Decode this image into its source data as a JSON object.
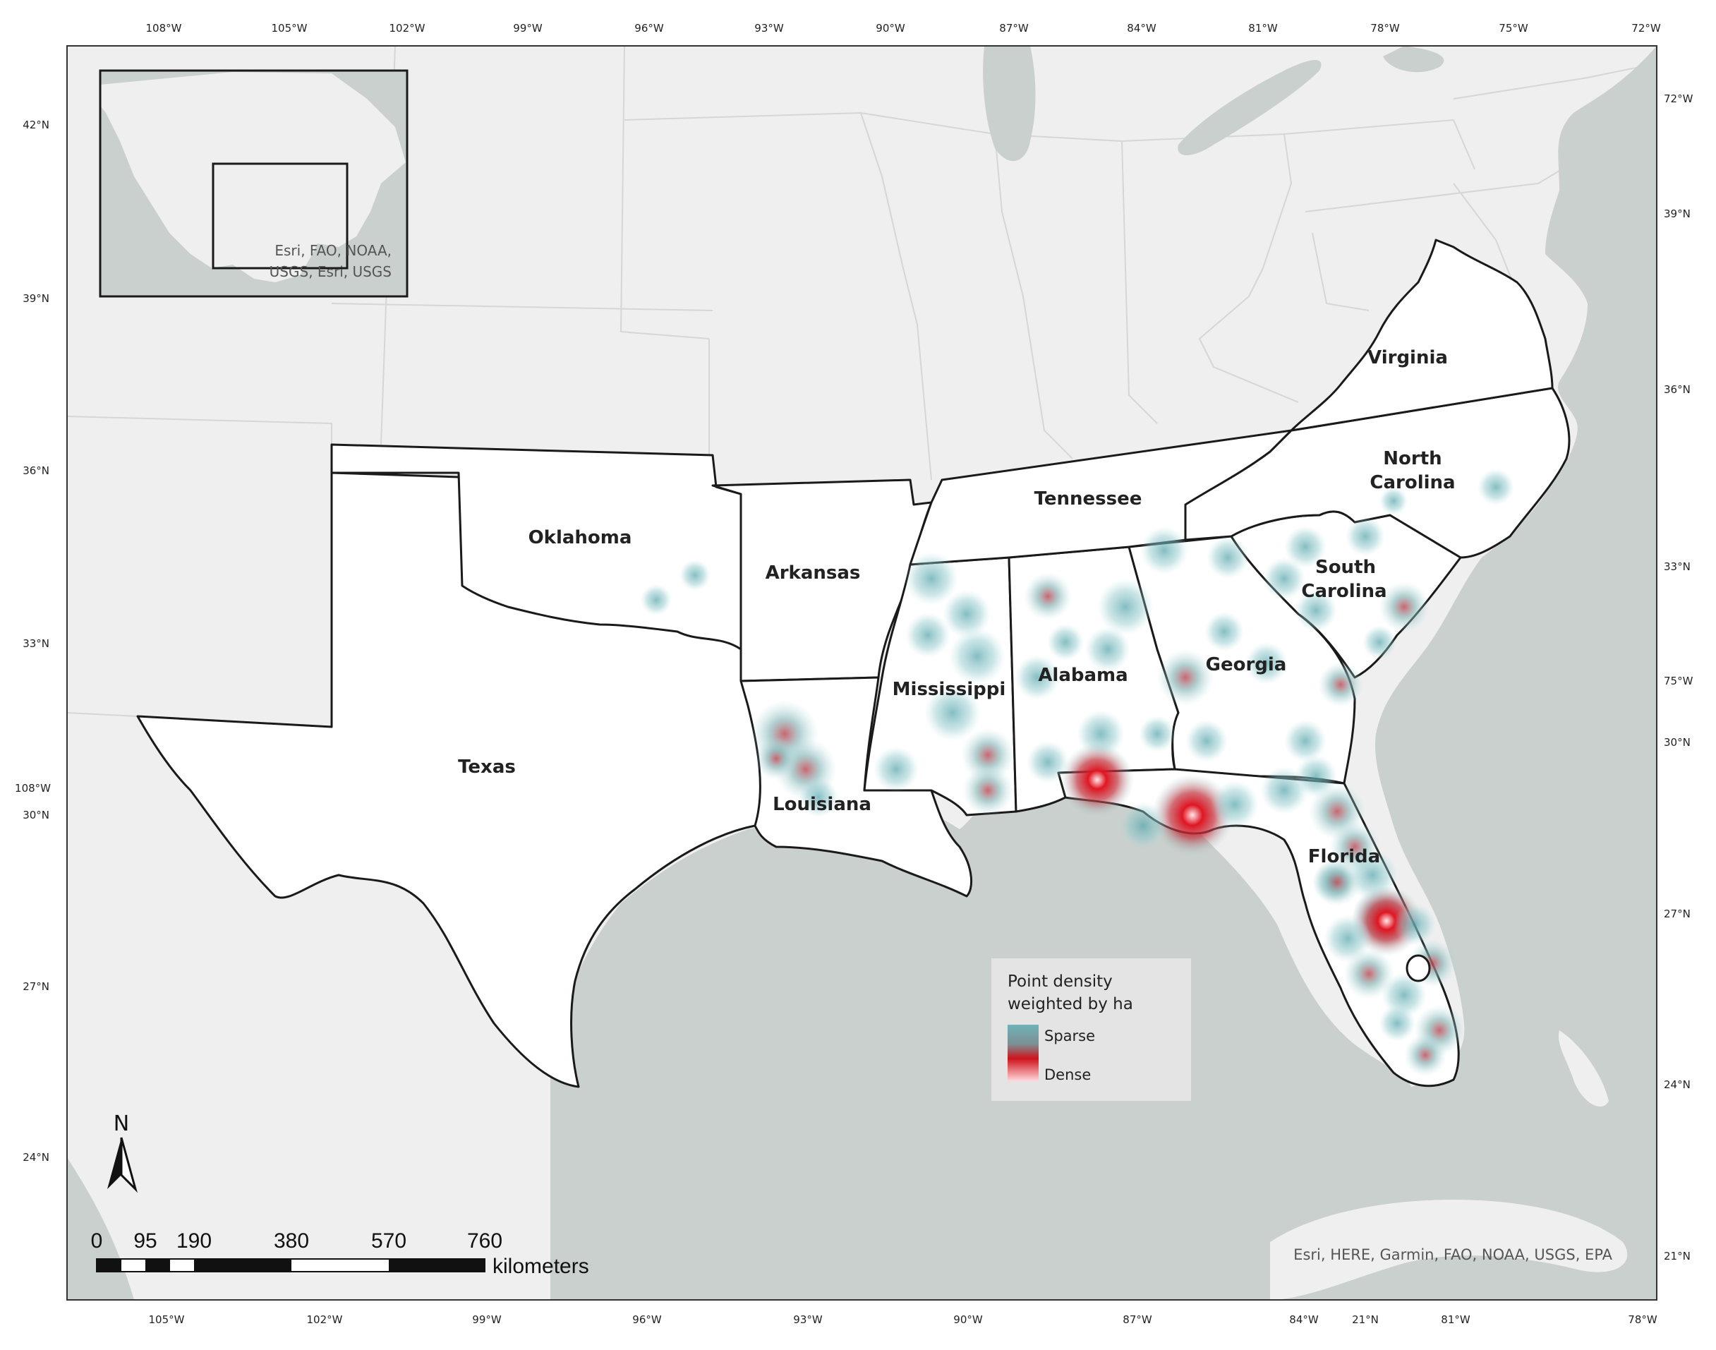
{
  "map": {
    "colors": {
      "land": "#efefef",
      "water": "#c9d0cd",
      "study_states": "#ffffff",
      "border": "#1a1a1a",
      "sparse": "#6fb3b8",
      "dense": "#d0121b"
    },
    "ticks": {
      "top": [
        "108°W",
        "105°W",
        "102°W",
        "99°W",
        "96°W",
        "93°W",
        "90°W",
        "87°W",
        "84°W",
        "81°W",
        "78°W",
        "75°W",
        "72°W"
      ],
      "bottom": [
        "105°W",
        "102°W",
        "99°W",
        "96°W",
        "93°W",
        "90°W",
        "87°W",
        "84°W",
        "81°W",
        "78°W"
      ],
      "left": [
        "42°N",
        "39°N",
        "36°N",
        "33°N",
        "30°N",
        "27°N",
        "24°N"
      ],
      "left_extra": "108°W",
      "right": [
        "72°W",
        "39°N",
        "36°N",
        "33°N",
        "75°W",
        "30°N",
        "27°N",
        "24°N",
        "21°N"
      ],
      "bottom_extra": "21°N",
      "bottom_extra2": "81°W"
    },
    "states": [
      "Virginia",
      "North Carolina",
      "Tennessee",
      "Oklahoma",
      "Arkansas",
      "South Carolina",
      "Georgia",
      "Alabama",
      "Mississippi",
      "Texas",
      "Louisiana",
      "Florida"
    ],
    "state_label_lines": {
      "north_carolina": [
        "North",
        "Carolina"
      ],
      "south_carolina": [
        "South",
        "Carolina"
      ]
    },
    "inset": {
      "attribution_lines": [
        "Esri, FAO, NOAA,",
        "USGS, Esri, USGS"
      ]
    },
    "attribution": "Esri, HERE, Garmin, FAO, NOAA, USGS, EPA",
    "legend": {
      "title_lines": [
        "Point density",
        "weighted by ha"
      ],
      "items": [
        "Sparse",
        "Dense"
      ]
    },
    "north_arrow": "N",
    "scale_bar": {
      "labels": [
        "0",
        "95",
        "190",
        "380",
        "570",
        "760"
      ],
      "unit": "kilometers"
    }
  }
}
